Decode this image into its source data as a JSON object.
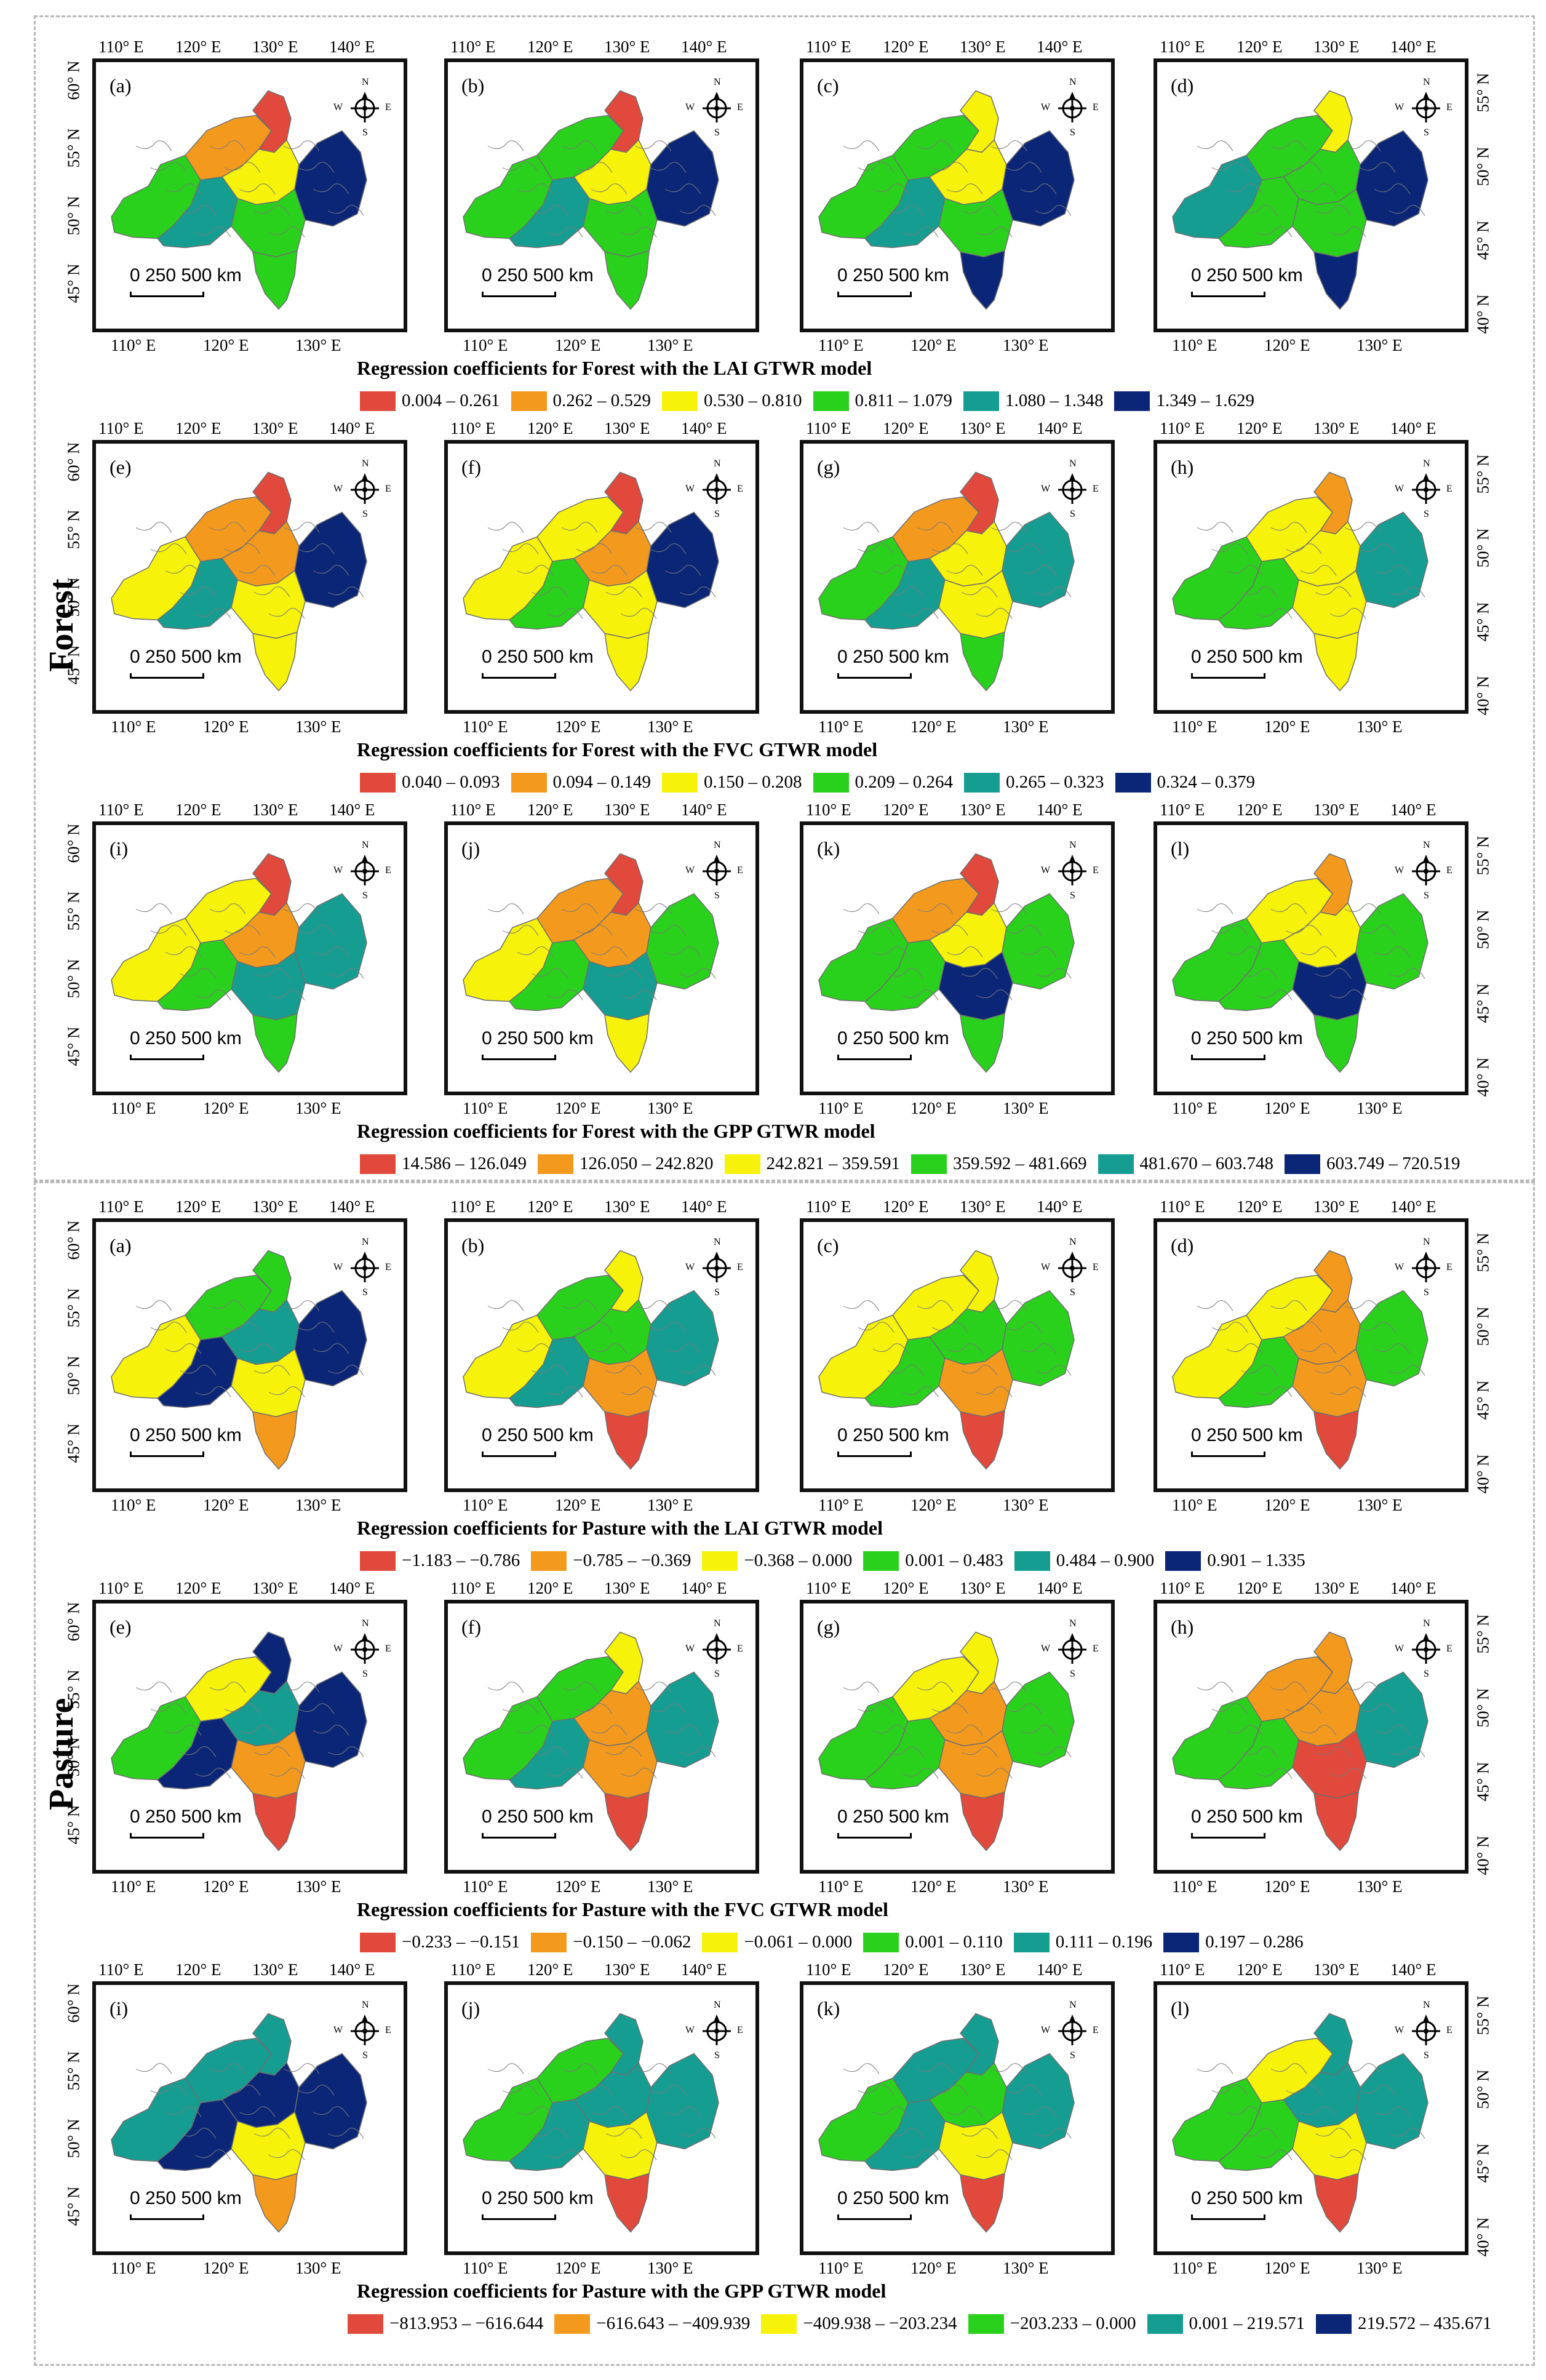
{
  "colors": [
    "#e1493c",
    "#f39a1e",
    "#f6f20a",
    "#2ad11c",
    "#169d92",
    "#0b2677"
  ],
  "common": {
    "lon_ticks_a": [
      "110° E",
      "120° E",
      "130° E",
      "140° E"
    ],
    "lon_ticks_b": [
      "110° E",
      "120° E",
      "130° E"
    ],
    "lat_ticks_left": [
      "60° N",
      "55° N",
      "50° N",
      "45° N"
    ],
    "lat_ticks_right": [
      "55° N",
      "50° N",
      "45° N",
      "40° N"
    ],
    "scale_label": "0   250 500 km",
    "compass": {
      "n": "N",
      "s": "S",
      "e": "E",
      "w": "W"
    }
  },
  "sections": [
    {
      "title": "Forest",
      "rows": [
        {
          "panels": [
            "(a)",
            "(b)",
            "(c)",
            "(d)"
          ],
          "caption": "Regression coefficients for Forest with the LAI GTWR model",
          "legend": [
            "0.004 – 0.261",
            "0.262 – 0.529",
            "0.530 – 0.810",
            "0.811 – 1.079",
            "1.080 – 1.348",
            "1.349 – 1.629"
          ],
          "maps": [
            [
              "green",
              "orange",
              "red",
              "yellow",
              "teal",
              "navy",
              "green",
              "green"
            ],
            [
              "green",
              "green",
              "red",
              "yellow",
              "teal",
              "navy",
              "green",
              "green"
            ],
            [
              "green",
              "green",
              "yellow",
              "yellow",
              "teal",
              "navy",
              "green",
              "navy"
            ],
            [
              "teal",
              "green",
              "yellow",
              "green",
              "green",
              "navy",
              "green",
              "navy"
            ]
          ]
        },
        {
          "panels": [
            "(e)",
            "(f)",
            "(g)",
            "(h)"
          ],
          "caption": "Regression coefficients for Forest with the FVC GTWR model",
          "legend": [
            "0.040 – 0.093",
            "0.094 – 0.149",
            "0.150 – 0.208",
            "0.209 – 0.264",
            "0.265 – 0.323",
            "0.324 – 0.379"
          ],
          "maps": [
            [
              "yellow",
              "orange",
              "red",
              "orange",
              "teal",
              "navy",
              "yellow",
              "yellow"
            ],
            [
              "yellow",
              "yellow",
              "red",
              "orange",
              "green",
              "navy",
              "yellow",
              "yellow"
            ],
            [
              "green",
              "orange",
              "red",
              "yellow",
              "teal",
              "teal",
              "yellow",
              "green"
            ],
            [
              "green",
              "yellow",
              "orange",
              "yellow",
              "green",
              "teal",
              "yellow",
              "yellow"
            ]
          ]
        },
        {
          "panels": [
            "(i)",
            "(j)",
            "(k)",
            "(l)"
          ],
          "caption": "Regression coefficients for Forest with the GPP GTWR model",
          "legend": [
            "14.586 – 126.049",
            "126.050 – 242.820",
            "242.821 – 359.591",
            "359.592 – 481.669",
            "481.670 – 603.748",
            "603.749 – 720.519"
          ],
          "maps": [
            [
              "yellow",
              "yellow",
              "red",
              "orange",
              "green",
              "teal",
              "teal",
              "green"
            ],
            [
              "yellow",
              "orange",
              "red",
              "orange",
              "green",
              "green",
              "teal",
              "yellow"
            ],
            [
              "green",
              "orange",
              "red",
              "yellow",
              "green",
              "green",
              "navy",
              "green"
            ],
            [
              "green",
              "yellow",
              "orange",
              "yellow",
              "green",
              "green",
              "navy",
              "green"
            ]
          ]
        }
      ]
    },
    {
      "title": "Pasture",
      "rows": [
        {
          "panels": [
            "(a)",
            "(b)",
            "(c)",
            "(d)"
          ],
          "caption": "Regression coefficients for Pasture with the LAI GTWR model",
          "legend": [
            "−1.183 – −0.786",
            "−0.785 – −0.369",
            "−0.368 – 0.000",
            "0.001 – 0.483",
            "0.484 – 0.900",
            "0.901 – 1.335"
          ],
          "maps": [
            [
              "yellow",
              "green",
              "green",
              "teal",
              "navy",
              "navy",
              "yellow",
              "orange"
            ],
            [
              "yellow",
              "green",
              "yellow",
              "green",
              "teal",
              "teal",
              "orange",
              "red"
            ],
            [
              "yellow",
              "yellow",
              "yellow",
              "green",
              "green",
              "green",
              "orange",
              "red"
            ],
            [
              "yellow",
              "yellow",
              "orange",
              "orange",
              "green",
              "green",
              "orange",
              "red"
            ]
          ]
        },
        {
          "panels": [
            "(e)",
            "(f)",
            "(g)",
            "(h)"
          ],
          "caption": "Regression coefficients for Pasture with the FVC GTWR model",
          "legend": [
            "−0.233 – −0.151",
            "−0.150 – −0.062",
            "−0.061 – 0.000",
            "0.001 – 0.110",
            "0.111 – 0.196",
            "0.197 – 0.286"
          ],
          "maps": [
            [
              "green",
              "yellow",
              "navy",
              "teal",
              "navy",
              "navy",
              "orange",
              "red"
            ],
            [
              "green",
              "green",
              "yellow",
              "orange",
              "teal",
              "teal",
              "orange",
              "red"
            ],
            [
              "green",
              "yellow",
              "yellow",
              "orange",
              "green",
              "green",
              "orange",
              "red"
            ],
            [
              "green",
              "orange",
              "orange",
              "orange",
              "green",
              "teal",
              "red",
              "red"
            ]
          ]
        },
        {
          "panels": [
            "(i)",
            "(j)",
            "(k)",
            "(l)"
          ],
          "caption": "Regression coefficients for Pasture with the GPP GTWR model",
          "legend": [
            "−813.953 – −616.644",
            "−616.643 – −409.939",
            "−409.938 – −203.234",
            "−203.233 – 0.000",
            "0.001 – 219.571",
            "219.572 – 435.671"
          ],
          "maps": [
            [
              "teal",
              "teal",
              "teal",
              "navy",
              "navy",
              "navy",
              "yellow",
              "orange"
            ],
            [
              "green",
              "green",
              "teal",
              "teal",
              "teal",
              "teal",
              "yellow",
              "red"
            ],
            [
              "green",
              "teal",
              "teal",
              "green",
              "teal",
              "teal",
              "yellow",
              "red"
            ],
            [
              "green",
              "yellow",
              "teal",
              "teal",
              "green",
              "teal",
              "yellow",
              "red"
            ]
          ]
        }
      ]
    }
  ]
}
